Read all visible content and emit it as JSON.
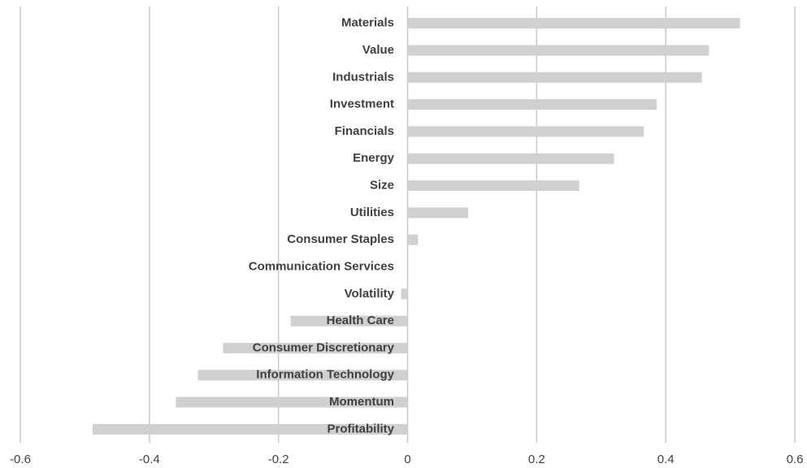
{
  "chart_data": {
    "type": "hbar",
    "categories": [
      "Materials",
      "Value",
      "Industrials",
      "Investment",
      "Financials",
      "Energy",
      "Size",
      "Utilities",
      "Consumer Staples",
      "Communication Services",
      "Volatility",
      "Health Care",
      "Consumer Discretionary",
      "Information Technology",
      "Momentum",
      "Profitability"
    ],
    "values": [
      0.515,
      0.467,
      0.456,
      0.386,
      0.366,
      0.32,
      0.266,
      0.094,
      0.016,
      0,
      -0.01,
      -0.181,
      -0.286,
      -0.325,
      -0.359,
      -0.488
    ],
    "color": "#d0d0d0",
    "xlim": [
      -0.6,
      0.6
    ],
    "xticks": [
      -0.6,
      -0.4,
      -0.2,
      0,
      0.2,
      0.4,
      0.6
    ],
    "grid": true
  }
}
